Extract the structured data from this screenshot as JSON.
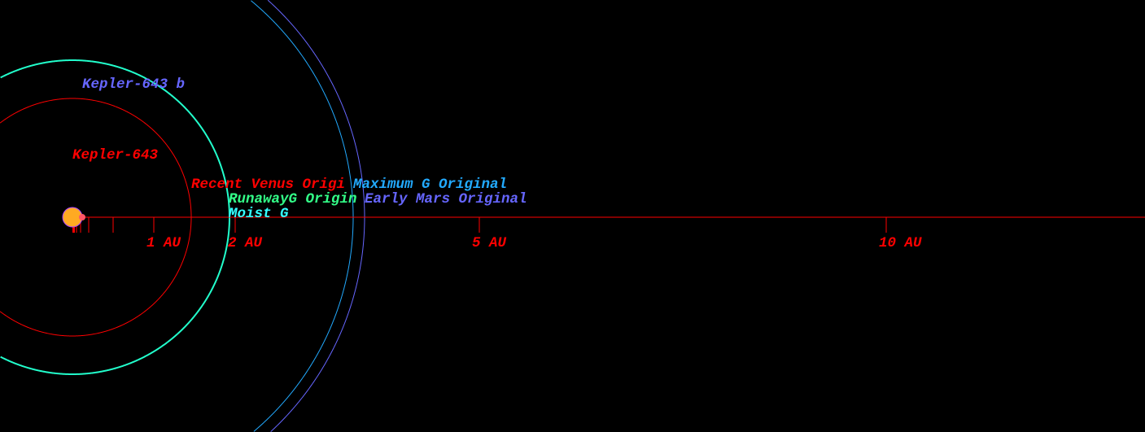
{
  "diagram": {
    "star": {
      "name": "Kepler-643",
      "color": "#ffaa22",
      "outline": "#aa44ff"
    },
    "planet": {
      "name": "Kepler-643 b",
      "color": "#6666ff"
    },
    "axis": {
      "color": "#ff0000",
      "ticks_au": [
        0.01,
        0.02,
        0.05,
        0.1,
        0.2,
        0.5,
        1,
        2,
        5,
        10
      ],
      "labels": [
        {
          "au": 1,
          "text": "1 AU"
        },
        {
          "au": 2,
          "text": "2 AU"
        },
        {
          "au": 5,
          "text": "5 AU"
        },
        {
          "au": 10,
          "text": "10 AU"
        }
      ]
    },
    "zones": [
      {
        "label": "Recent Venus Origi",
        "color": "#ff0000",
        "radius_au": 1.46
      },
      {
        "label": "RunawayG Origin",
        "color": "#33ff88",
        "radius_au": 1.93
      },
      {
        "label": "Moist G",
        "color": "#33ffff",
        "radius_au": 1.93
      },
      {
        "label": "Maximum G Original",
        "color": "#22aaff",
        "radius_au": 3.45
      },
      {
        "label": "Early Mars Original",
        "color": "#6666ff",
        "radius_au": 3.59
      }
    ],
    "orbit_color": "#22ffcc"
  }
}
